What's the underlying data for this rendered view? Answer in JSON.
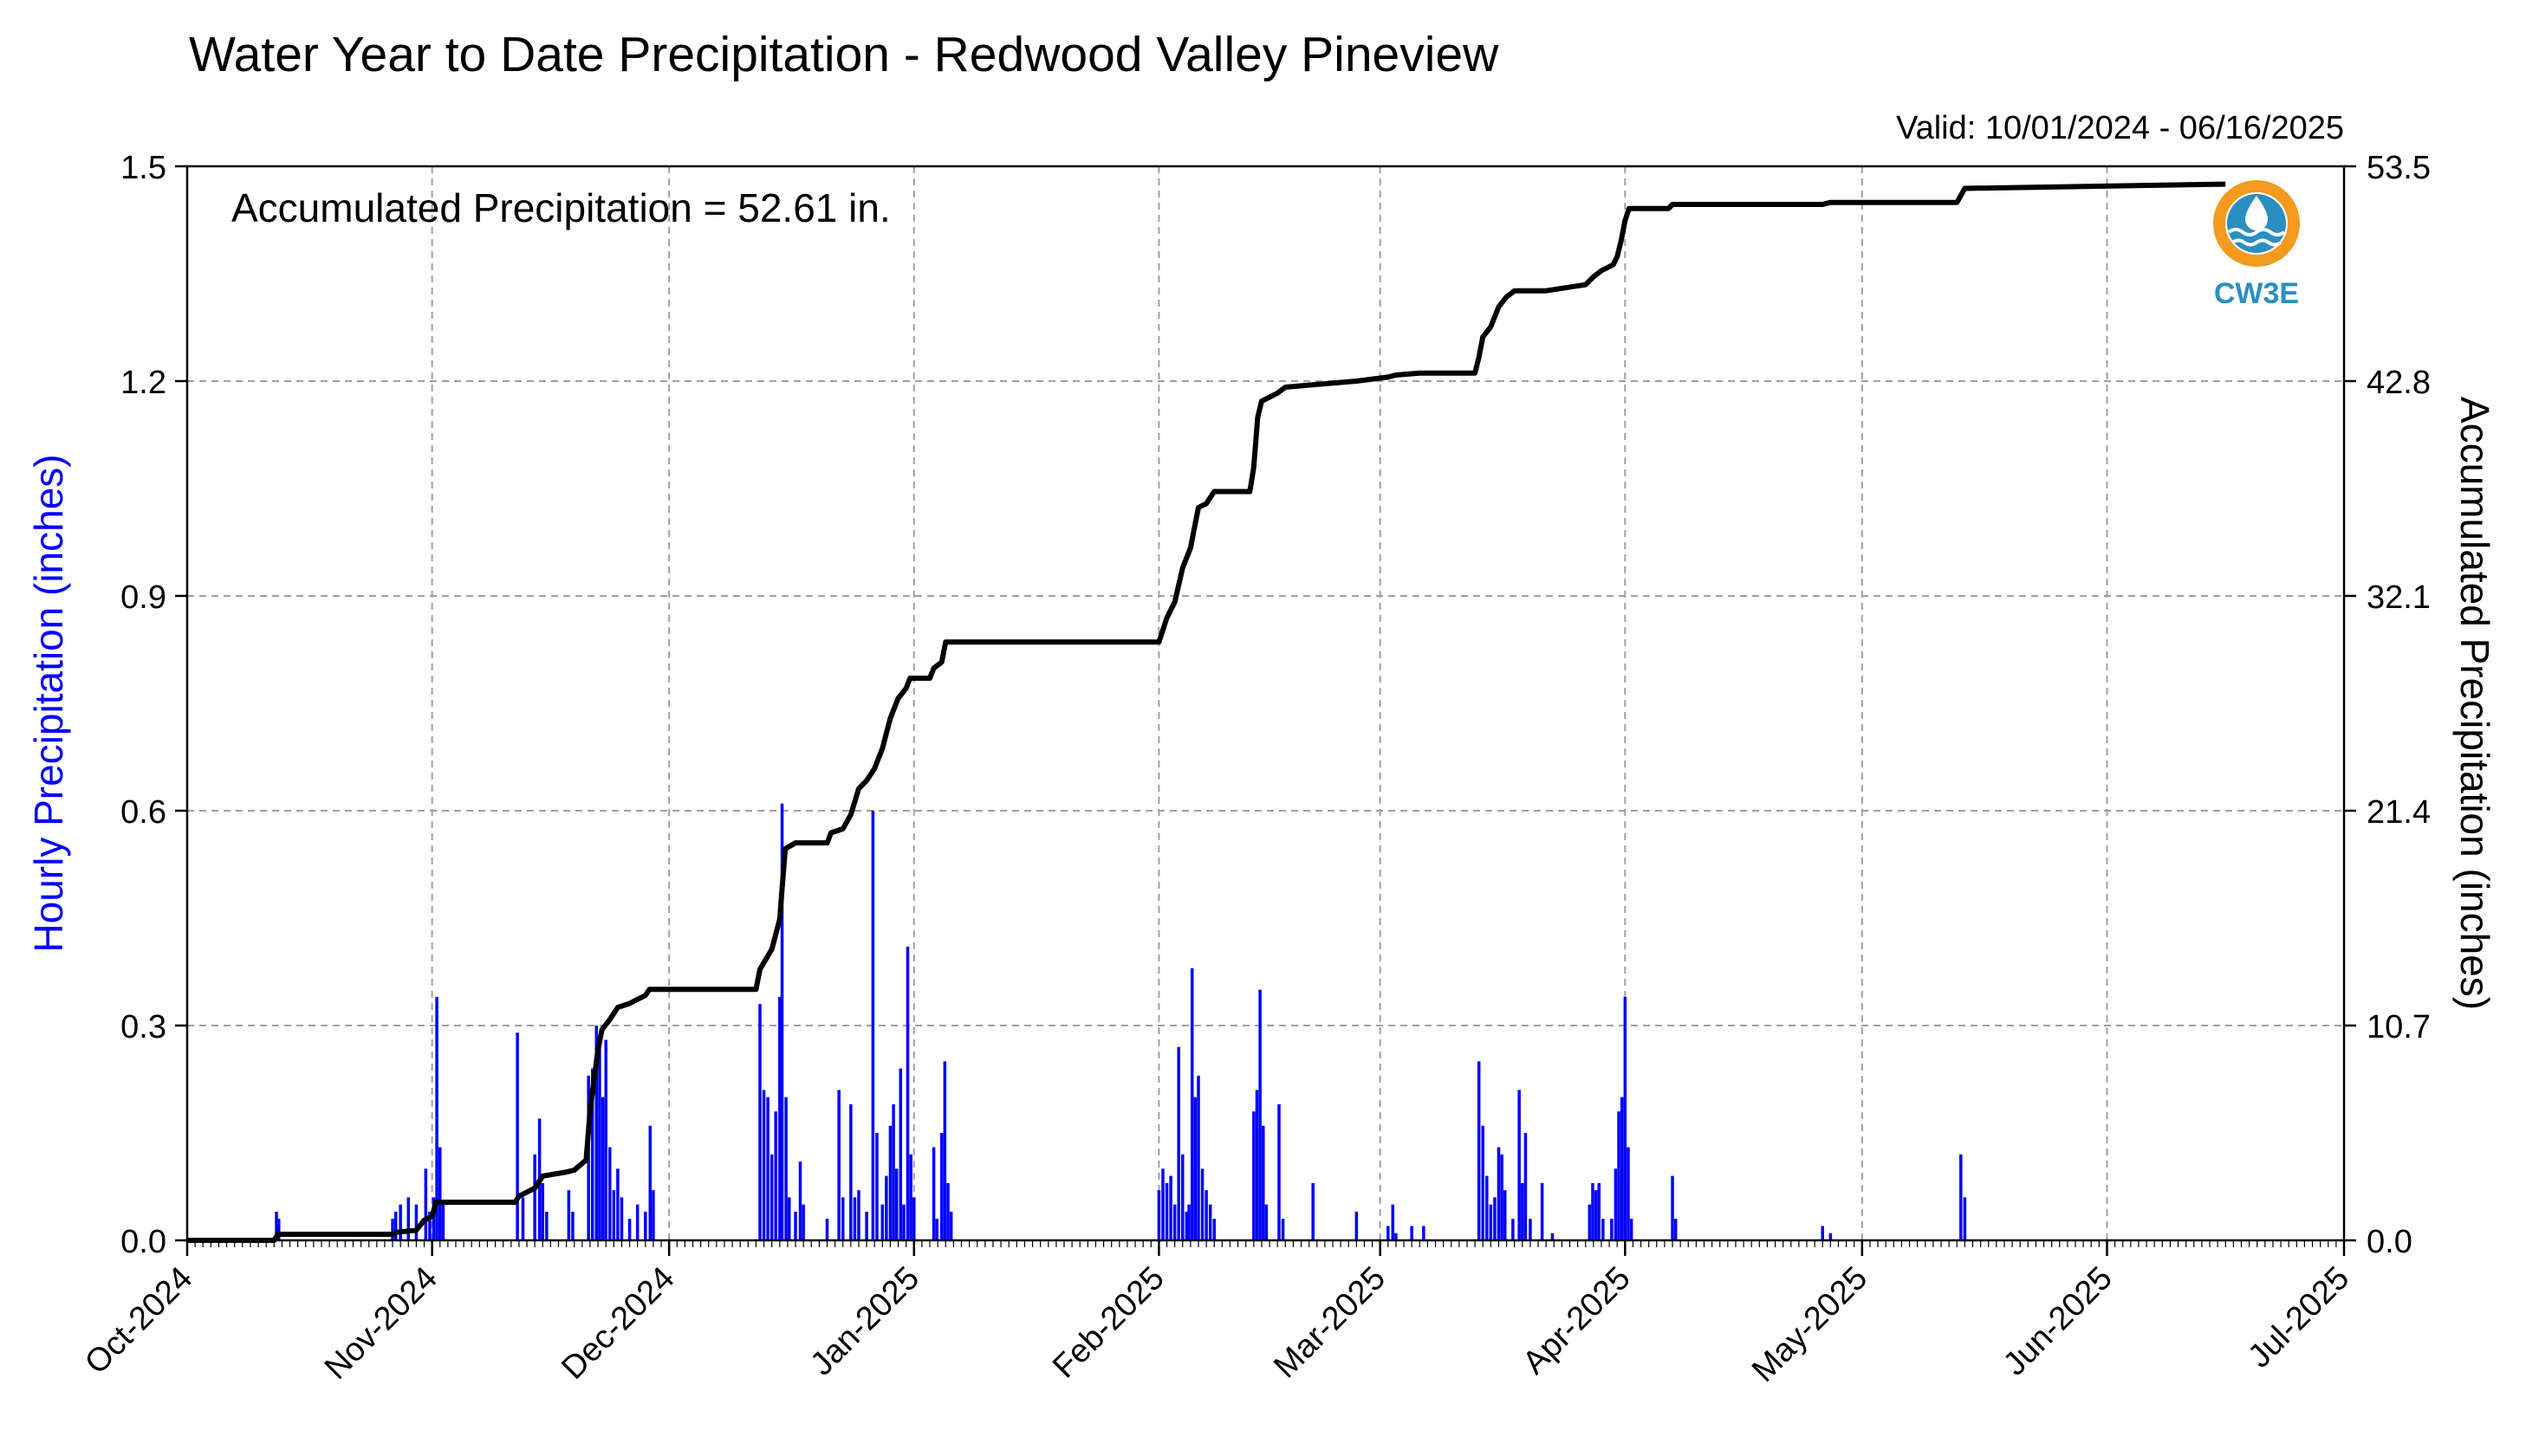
{
  "chart_data": {
    "type": "bar+line",
    "title": "Water Year to Date Precipitation - Redwood Valley Pineview",
    "valid_text": "Valid: 10/01/2024 - 06/16/2025",
    "annotation": "Accumulated Precipitation = 52.61 in.",
    "logo_text": "CW3E",
    "y_left_label": "Hourly Precipitation (inches)",
    "y_right_label": "Accumulated Precipitation (inches)",
    "y_left_range": [
      0,
      1.5
    ],
    "y_right_range": [
      0,
      53.5
    ],
    "y_left_ticks": [
      "0.0",
      "0.3",
      "0.6",
      "0.9",
      "1.2",
      "1.5"
    ],
    "y_right_ticks": [
      "0.0",
      "10.7",
      "21.4",
      "32.1",
      "42.8",
      "53.5"
    ],
    "x_range_days": [
      0,
      273
    ],
    "x_ticks": [
      {
        "label": "Oct-2024",
        "day": 0
      },
      {
        "label": "Nov-2024",
        "day": 31
      },
      {
        "label": "Dec-2024",
        "day": 61
      },
      {
        "label": "Jan-2025",
        "day": 92
      },
      {
        "label": "Feb-2025",
        "day": 123
      },
      {
        "label": "Mar-2025",
        "day": 151
      },
      {
        "label": "Apr-2025",
        "day": 182
      },
      {
        "label": "May-2025",
        "day": 212
      },
      {
        "label": "Jun-2025",
        "day": 243
      },
      {
        "label": "Jul-2025",
        "day": 273
      }
    ],
    "grid": true,
    "colors": {
      "hourly": "#0000ff",
      "accumulated": "#000000",
      "grid": "#a0a0a0",
      "logo_orange": "#f39a1f",
      "logo_blue": "#2a8fc0"
    },
    "hourly_series": {
      "name": "Hourly Precipitation",
      "points": [
        [
          11.3,
          0.04
        ],
        [
          11.6,
          0.03
        ],
        [
          26.0,
          0.03
        ],
        [
          26.4,
          0.04
        ],
        [
          27.0,
          0.05
        ],
        [
          28.0,
          0.06
        ],
        [
          29.0,
          0.05
        ],
        [
          30.2,
          0.1
        ],
        [
          30.7,
          0.04
        ],
        [
          31.2,
          0.06
        ],
        [
          31.6,
          0.34
        ],
        [
          32.0,
          0.13
        ],
        [
          32.4,
          0.05
        ],
        [
          41.8,
          0.29
        ],
        [
          42.5,
          0.06
        ],
        [
          44.0,
          0.12
        ],
        [
          44.6,
          0.17
        ],
        [
          45.0,
          0.08
        ],
        [
          45.5,
          0.04
        ],
        [
          48.3,
          0.07
        ],
        [
          48.8,
          0.04
        ],
        [
          50.8,
          0.23
        ],
        [
          51.3,
          0.24
        ],
        [
          51.8,
          0.3
        ],
        [
          52.2,
          0.27
        ],
        [
          52.6,
          0.2
        ],
        [
          53.0,
          0.28
        ],
        [
          53.5,
          0.13
        ],
        [
          54.0,
          0.07
        ],
        [
          54.5,
          0.1
        ],
        [
          55.0,
          0.06
        ],
        [
          56.0,
          0.03
        ],
        [
          57.0,
          0.05
        ],
        [
          58.0,
          0.04
        ],
        [
          58.6,
          0.16
        ],
        [
          59.0,
          0.07
        ],
        [
          72.5,
          0.33
        ],
        [
          73.0,
          0.21
        ],
        [
          73.5,
          0.2
        ],
        [
          74.0,
          0.12
        ],
        [
          74.5,
          0.18
        ],
        [
          75.0,
          0.34
        ],
        [
          75.3,
          0.61
        ],
        [
          75.8,
          0.2
        ],
        [
          76.2,
          0.06
        ],
        [
          77.0,
          0.04
        ],
        [
          77.6,
          0.11
        ],
        [
          78.0,
          0.05
        ],
        [
          81.0,
          0.03
        ],
        [
          82.5,
          0.21
        ],
        [
          83.0,
          0.06
        ],
        [
          84.0,
          0.19
        ],
        [
          84.5,
          0.06
        ],
        [
          85.0,
          0.07
        ],
        [
          86.0,
          0.04
        ],
        [
          86.8,
          0.6
        ],
        [
          87.3,
          0.15
        ],
        [
          88.0,
          0.05
        ],
        [
          88.5,
          0.09
        ],
        [
          89.0,
          0.16
        ],
        [
          89.4,
          0.19
        ],
        [
          89.8,
          0.1
        ],
        [
          90.3,
          0.24
        ],
        [
          90.7,
          0.05
        ],
        [
          91.2,
          0.41
        ],
        [
          91.6,
          0.12
        ],
        [
          92.0,
          0.06
        ],
        [
          94.5,
          0.13
        ],
        [
          94.9,
          0.03
        ],
        [
          95.5,
          0.15
        ],
        [
          95.9,
          0.25
        ],
        [
          96.3,
          0.08
        ],
        [
          96.7,
          0.04
        ],
        [
          123.0,
          0.07
        ],
        [
          123.5,
          0.1
        ],
        [
          124.0,
          0.08
        ],
        [
          124.5,
          0.09
        ],
        [
          125.0,
          0.05
        ],
        [
          125.5,
          0.27
        ],
        [
          126.0,
          0.12
        ],
        [
          126.5,
          0.04
        ],
        [
          126.8,
          0.05
        ],
        [
          127.2,
          0.38
        ],
        [
          127.6,
          0.2
        ],
        [
          128.0,
          0.23
        ],
        [
          128.5,
          0.1
        ],
        [
          129.0,
          0.07
        ],
        [
          129.5,
          0.05
        ],
        [
          130.0,
          0.03
        ],
        [
          135.0,
          0.18
        ],
        [
          135.4,
          0.21
        ],
        [
          135.8,
          0.35
        ],
        [
          136.2,
          0.16
        ],
        [
          136.6,
          0.05
        ],
        [
          138.2,
          0.19
        ],
        [
          138.7,
          0.03
        ],
        [
          142.5,
          0.08
        ],
        [
          148.0,
          0.04
        ],
        [
          152.0,
          0.02
        ],
        [
          152.6,
          0.05
        ],
        [
          153.0,
          0.01
        ],
        [
          155.0,
          0.02
        ],
        [
          156.5,
          0.02
        ],
        [
          163.5,
          0.25
        ],
        [
          164.0,
          0.16
        ],
        [
          164.5,
          0.09
        ],
        [
          165.0,
          0.05
        ],
        [
          165.5,
          0.06
        ],
        [
          166.0,
          0.13
        ],
        [
          166.4,
          0.12
        ],
        [
          166.8,
          0.07
        ],
        [
          167.8,
          0.03
        ],
        [
          168.6,
          0.21
        ],
        [
          169.0,
          0.08
        ],
        [
          169.4,
          0.15
        ],
        [
          170.0,
          0.03
        ],
        [
          171.5,
          0.08
        ],
        [
          172.8,
          0.01
        ],
        [
          177.5,
          0.05
        ],
        [
          177.9,
          0.08
        ],
        [
          178.3,
          0.07
        ],
        [
          178.7,
          0.08
        ],
        [
          179.2,
          0.03
        ],
        [
          180.3,
          0.03
        ],
        [
          180.8,
          0.1
        ],
        [
          181.2,
          0.18
        ],
        [
          181.6,
          0.2
        ],
        [
          182.0,
          0.34
        ],
        [
          182.4,
          0.13
        ],
        [
          182.8,
          0.03
        ],
        [
          188.0,
          0.09
        ],
        [
          188.4,
          0.03
        ],
        [
          207.0,
          0.02
        ],
        [
          208.0,
          0.01
        ],
        [
          224.5,
          0.12
        ],
        [
          225.0,
          0.06
        ]
      ]
    },
    "accumulated_series": {
      "name": "Accumulated Precipitation",
      "points": [
        [
          0,
          0
        ],
        [
          11,
          0
        ],
        [
          11.5,
          0.3
        ],
        [
          26,
          0.3
        ],
        [
          26.5,
          0.4
        ],
        [
          29,
          0.5
        ],
        [
          30,
          1.0
        ],
        [
          31,
          1.2
        ],
        [
          31.5,
          1.9
        ],
        [
          41.5,
          1.9
        ],
        [
          42,
          2.2
        ],
        [
          44,
          2.6
        ],
        [
          45,
          3.2
        ],
        [
          48,
          3.4
        ],
        [
          49,
          3.5
        ],
        [
          50.5,
          4.0
        ],
        [
          51,
          6.5
        ],
        [
          51.5,
          8.0
        ],
        [
          52,
          9.5
        ],
        [
          52.5,
          10.5
        ],
        [
          53.5,
          11.0
        ],
        [
          54.5,
          11.6
        ],
        [
          56,
          11.8
        ],
        [
          58,
          12.2
        ],
        [
          58.5,
          12.5
        ],
        [
          72,
          12.5
        ],
        [
          72.5,
          13.5
        ],
        [
          74,
          14.5
        ],
        [
          75,
          16.0
        ],
        [
          75.3,
          17.5
        ],
        [
          75.7,
          19.5
        ],
        [
          77,
          19.8
        ],
        [
          81,
          19.8
        ],
        [
          81.5,
          20.3
        ],
        [
          83,
          20.5
        ],
        [
          84,
          21.2
        ],
        [
          85,
          22.5
        ],
        [
          86,
          22.9
        ],
        [
          87,
          23.5
        ],
        [
          88,
          24.5
        ],
        [
          89,
          26.0
        ],
        [
          90,
          27.0
        ],
        [
          91,
          27.5
        ],
        [
          91.5,
          28.0
        ],
        [
          94,
          28.0
        ],
        [
          94.5,
          28.5
        ],
        [
          95.5,
          28.8
        ],
        [
          96,
          29.8
        ],
        [
          123,
          29.8
        ],
        [
          124,
          31.0
        ],
        [
          125,
          31.8
        ],
        [
          126,
          33.5
        ],
        [
          127,
          34.5
        ],
        [
          127.5,
          35.5
        ],
        [
          128,
          36.5
        ],
        [
          129,
          36.7
        ],
        [
          130,
          37.3
        ],
        [
          134.5,
          37.3
        ],
        [
          135,
          38.5
        ],
        [
          135.5,
          41.0
        ],
        [
          136,
          41.8
        ],
        [
          138,
          42.2
        ],
        [
          139,
          42.5
        ],
        [
          142,
          42.6
        ],
        [
          148,
          42.8
        ],
        [
          152,
          43.0
        ],
        [
          153,
          43.1
        ],
        [
          156,
          43.2
        ],
        [
          163,
          43.2
        ],
        [
          163.5,
          44.0
        ],
        [
          164,
          45.0
        ],
        [
          165,
          45.5
        ],
        [
          166,
          46.5
        ],
        [
          167,
          47.0
        ],
        [
          168,
          47.3
        ],
        [
          172,
          47.3
        ],
        [
          177,
          47.6
        ],
        [
          178,
          48.0
        ],
        [
          179,
          48.3
        ],
        [
          180.5,
          48.6
        ],
        [
          181,
          49.0
        ],
        [
          181.5,
          49.8
        ],
        [
          182,
          50.8
        ],
        [
          182.5,
          51.4
        ],
        [
          187.5,
          51.4
        ],
        [
          188,
          51.6
        ],
        [
          207,
          51.6
        ],
        [
          208,
          51.7
        ],
        [
          224,
          51.7
        ],
        [
          225,
          52.4
        ],
        [
          258,
          52.61
        ]
      ]
    }
  }
}
